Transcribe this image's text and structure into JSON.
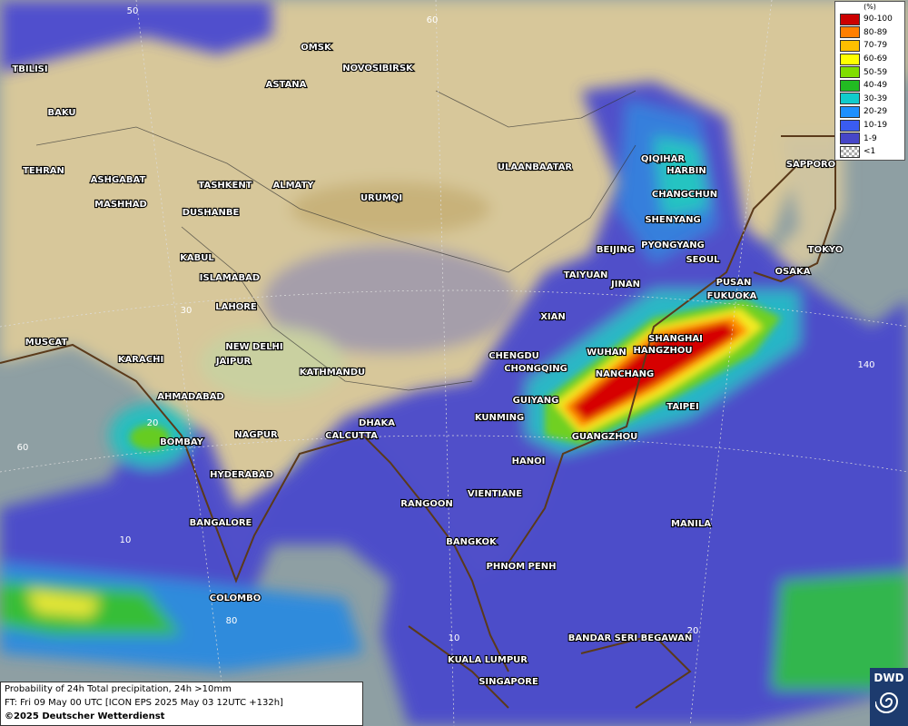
{
  "legend": {
    "unit": "(%)",
    "items": [
      {
        "label": "90-100",
        "color": "#cc0000"
      },
      {
        "label": "80-89",
        "color": "#ff7f00"
      },
      {
        "label": "70-79",
        "color": "#ffbf00"
      },
      {
        "label": "60-69",
        "color": "#ffff00"
      },
      {
        "label": "50-59",
        "color": "#80dd00"
      },
      {
        "label": "40-49",
        "color": "#22bb22"
      },
      {
        "label": "30-39",
        "color": "#11cccc"
      },
      {
        "label": "20-29",
        "color": "#1e90ff"
      },
      {
        "label": "10-19",
        "color": "#3a5cf0"
      },
      {
        "label": "1-9",
        "color": "#4646c8"
      },
      {
        "label": "<1",
        "color": "#aaaaaa"
      }
    ]
  },
  "cities": [
    "OMSK",
    "NOVOSIBIRSK",
    "ASTANA",
    "TBILISI",
    "BAKU",
    "TEHRAN",
    "ASHGABAT",
    "MASHHAD",
    "TASHKENT",
    "ALMATY",
    "URUMQI",
    "ULAANBAATAR",
    "QIQIHAR",
    "HARBIN",
    "CHANGCHUN",
    "SHENYANG",
    "BEIJING",
    "PYONGYANG",
    "SEOUL",
    "TAIYUAN",
    "JINAN",
    "SAPPORO",
    "TOKYO",
    "OSAKA",
    "PUSAN",
    "FUKUOKA",
    "DUSHANBE",
    "KABUL",
    "ISLAMABAD",
    "LAHORE",
    "XIAN",
    "SHANGHAI",
    "HANGZHOU",
    "WUHAN",
    "CHENGDU",
    "CHONGQING",
    "NANCHANG",
    "NEW DELHI",
    "JAIPUR",
    "KATHMANDU",
    "KARACHI",
    "MUSCAT",
    "AHMADABAD",
    "GUIYANG",
    "TAIPEI",
    "KUNMING",
    "DHAKA",
    "CALCUTTA",
    "NAGPUR",
    "BOMBAY",
    "GUANGZHOU",
    "HANOI",
    "HYDERABAD",
    "RANGOON",
    "VIENTIANE",
    "BANGALORE",
    "MANILA",
    "BANGKOK",
    "PHNOM PENH",
    "COLOMBO",
    "BANDAR SERI BEGAWAN",
    "KUALA LUMPUR",
    "SINGAPORE"
  ],
  "grid_labels": [
    "50",
    "60",
    "30",
    "140",
    "20",
    "60",
    "10",
    "80",
    "10",
    "20"
  ],
  "footer": {
    "line1": "Probability of 24h Total precipitation, 24h >10mm",
    "line2": "FT: Fri 09 May 00 UTC [ICON EPS 2025 May 03 12UTC +132h]",
    "line3": "©2025 Deutscher Wetterdienst"
  },
  "logo": "DWD"
}
